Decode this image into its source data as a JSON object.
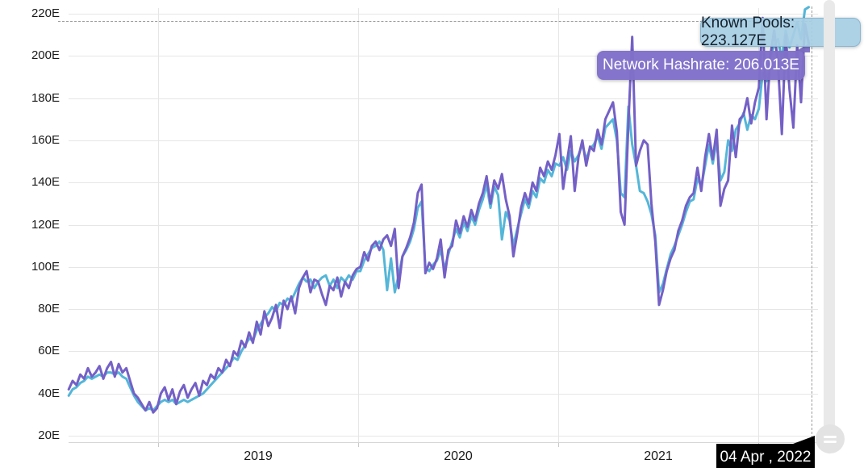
{
  "ui": {
    "tooltips": {
      "known_pools": "Known Pools: 223.127E",
      "network_hashrate": "Network Hashrate: 206.013E"
    },
    "date_flag": "04 Apr , 2022",
    "scrollbar_grip": "grip-lines"
  },
  "colors": {
    "known_pools": "#54b6d8",
    "network_hashrate": "#7460c6",
    "grid": "#e6e6e6",
    "tooltip_pools_bg": "#a7cee3",
    "tooltip_net_bg": "#806fc9",
    "date_flag_bg": "#000000"
  },
  "chart_data": {
    "type": "line",
    "title": "",
    "xlabel": "",
    "ylabel": "",
    "unit": "E",
    "ylim": [
      20,
      220
    ],
    "grid": true,
    "legend_position": "none",
    "y_axis": {
      "tick_labels": [
        "220E",
        "200E",
        "180E",
        "160E",
        "140E",
        "120E",
        "100E",
        "80E",
        "60E",
        "40E",
        "20E"
      ]
    },
    "x_axis": {
      "year_labels": [
        "2019",
        "2020",
        "2021"
      ],
      "grid_years": [
        2019,
        2020,
        2021,
        2022
      ]
    },
    "hover_point": {
      "date": "04 Apr , 2022",
      "known_pools": 223.127,
      "network_hashrate": 206.013
    },
    "start_date": "2018-07-22",
    "interval_days": 7,
    "series": [
      {
        "name": "Known Pools",
        "values": [
          39,
          42,
          43,
          45,
          46,
          48,
          47,
          48,
          49,
          48,
          50,
          50,
          49,
          50,
          48,
          47,
          43,
          39,
          36,
          34,
          32,
          33,
          32,
          34,
          36,
          37,
          36,
          37,
          35,
          36,
          37,
          36,
          37,
          38,
          39,
          40,
          42,
          44,
          46,
          48,
          50,
          52,
          54,
          57,
          56,
          60,
          63,
          66,
          65,
          70,
          73,
          76,
          78,
          81,
          79,
          83,
          82,
          85,
          84,
          88,
          92,
          95,
          93,
          94,
          90,
          93,
          95,
          96,
          91,
          94,
          90,
          95,
          93,
          96,
          94,
          98,
          98,
          103,
          106,
          109,
          110,
          112,
          108,
          89,
          104,
          88,
          96,
          105,
          108,
          112,
          118,
          128,
          131,
          100,
          98,
          101,
          103,
          108,
          99,
          106,
          112,
          118,
          114,
          121,
          117,
          124,
          120,
          127,
          132,
          139,
          128,
          138,
          134,
          113,
          126,
          122,
          110,
          118,
          125,
          132,
          128,
          136,
          133,
          142,
          140,
          146,
          143,
          149,
          148,
          152,
          146,
          155,
          150,
          153,
          158,
          151,
          156,
          158,
          162,
          156,
          166,
          168,
          170,
          160,
          135,
          133,
          176,
          158,
          148,
          136,
          135,
          131,
          125,
          115,
          88,
          92,
          99,
          106,
          110,
          115,
          120,
          126,
          131,
          132,
          142,
          138,
          148,
          158,
          149,
          160,
          141,
          145,
          160,
          155,
          165,
          168,
          173,
          165,
          172,
          170,
          175,
          192,
          188,
          200,
          205,
          208,
          198,
          212,
          204,
          210,
          216,
          208,
          222,
          223.127
        ]
      },
      {
        "name": "Network Hashrate",
        "values": [
          42,
          46,
          44,
          49,
          47,
          52,
          48,
          50,
          53,
          47,
          52,
          55,
          48,
          54,
          50,
          52,
          46,
          40,
          38,
          35,
          32,
          36,
          31,
          33,
          40,
          43,
          37,
          42,
          35,
          41,
          44,
          38,
          42,
          45,
          39,
          46,
          44,
          49,
          47,
          52,
          50,
          56,
          53,
          60,
          58,
          65,
          62,
          69,
          64,
          74,
          68,
          79,
          72,
          76,
          82,
          71,
          84,
          80,
          86,
          78,
          90,
          95,
          98,
          88,
          94,
          93,
          87,
          82,
          91,
          89,
          95,
          86,
          93,
          90,
          96,
          99,
          100,
          107,
          103,
          110,
          112,
          108,
          113,
          115,
          110,
          118,
          90,
          105,
          109,
          114,
          121,
          135,
          139,
          97,
          102,
          99,
          104,
          113,
          95,
          108,
          110,
          122,
          116,
          124,
          119,
          127,
          122,
          130,
          135,
          143,
          130,
          141,
          137,
          144,
          132,
          124,
          105,
          116,
          128,
          135,
          130,
          140,
          136,
          147,
          143,
          150,
          146,
          153,
          163,
          137,
          150,
          162,
          136,
          152,
          160,
          148,
          157,
          155,
          165,
          158,
          170,
          174,
          178,
          164,
          126,
          120,
          168,
          209,
          148,
          155,
          160,
          158,
          130,
          112,
          82,
          89,
          98,
          104,
          108,
          117,
          122,
          129,
          133,
          135,
          147,
          136,
          152,
          163,
          151,
          165,
          129,
          137,
          141,
          167,
          152,
          170,
          172,
          180,
          168,
          178,
          185,
          218,
          170,
          200,
          212,
          196,
          163,
          210,
          184,
          166,
          205,
          178,
          215,
          206.013
        ]
      }
    ]
  }
}
